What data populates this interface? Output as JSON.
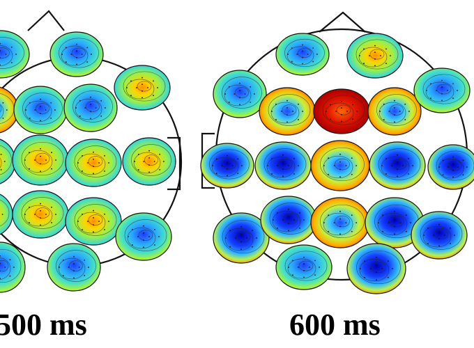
{
  "figure": {
    "panels": [
      {
        "label": "500 ms",
        "maps": [
          {
            "pattern": "coolcenter"
          },
          {
            "pattern": "coolcenter"
          },
          {
            "pattern": "warmedge"
          },
          {
            "pattern": "coolcenter"
          },
          {
            "pattern": "coolcenter"
          },
          {
            "pattern": "mixed"
          },
          {
            "pattern": "mixed"
          },
          {
            "pattern": "mixed"
          },
          {
            "pattern": "mixed"
          },
          {
            "pattern": "mixed"
          },
          {
            "pattern": "mixed"
          },
          {
            "pattern": "mixed"
          },
          {
            "pattern": "mixed"
          },
          {
            "pattern": "coolcenter"
          },
          {
            "pattern": "coolcenter"
          }
        ]
      },
      {
        "label": "600 ms",
        "maps": [
          {
            "pattern": "coolcenter"
          },
          {
            "pattern": "mixed"
          },
          {
            "pattern": "coolcenter"
          },
          {
            "pattern": "warmedge"
          },
          {
            "pattern": "hot"
          },
          {
            "pattern": "warmedge"
          },
          {
            "pattern": "coolcenter"
          },
          {
            "pattern": "deepblue"
          },
          {
            "pattern": "deepblue"
          },
          {
            "pattern": "warmedge"
          },
          {
            "pattern": "deepblue"
          },
          {
            "pattern": "deepblue"
          },
          {
            "pattern": "deepblue"
          },
          {
            "pattern": "deepblue"
          },
          {
            "pattern": "warmedge"
          },
          {
            "pattern": "deepblue"
          },
          {
            "pattern": "deepblue"
          },
          {
            "pattern": "coolcenter"
          },
          {
            "pattern": "deepblue"
          }
        ]
      }
    ]
  }
}
